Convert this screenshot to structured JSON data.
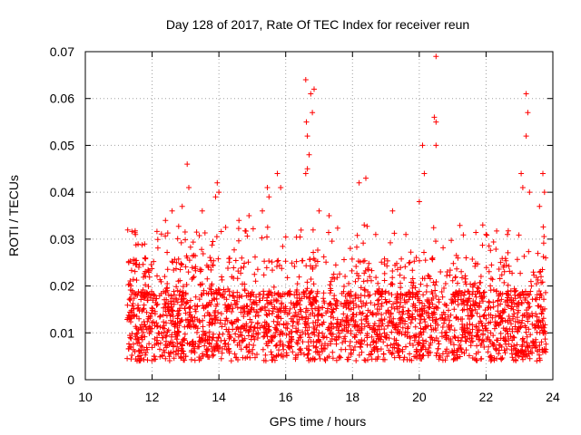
{
  "chart_data": {
    "type": "scatter",
    "title": "Day 128 of 2017, Rate Of TEC Index for receiver reun",
    "xlabel": "GPS time / hours",
    "ylabel": "ROTI / TECUs",
    "xlim": [
      10,
      24
    ],
    "ylim": [
      0,
      0.07
    ],
    "xticks": [
      10,
      12,
      14,
      16,
      18,
      20,
      22,
      24
    ],
    "xtick_labels": [
      "10",
      "12",
      "14",
      "16",
      "18",
      "20",
      "22",
      "24"
    ],
    "yticks": [
      0,
      0.01,
      0.02,
      0.03,
      0.04,
      0.05,
      0.06,
      0.07
    ],
    "ytick_labels": [
      "0",
      "0.01",
      "0.02",
      "0.03",
      "0.04",
      "0.05",
      "0.06",
      "0.07"
    ],
    "grid": true,
    "marker": "+",
    "color": "#ff0000",
    "series": [
      {
        "name": "ROTI",
        "note": "Dense band of points from ~11.2 to ~23.8 h, mostly 0.005-0.02; representative peaks listed",
        "points": [
          [
            11.3,
            0.025
          ],
          [
            11.5,
            0.031
          ],
          [
            11.6,
            0.024
          ],
          [
            12.4,
            0.034
          ],
          [
            12.6,
            0.036
          ],
          [
            12.9,
            0.037
          ],
          [
            13.05,
            0.046
          ],
          [
            13.1,
            0.041
          ],
          [
            13.5,
            0.036
          ],
          [
            13.9,
            0.039
          ],
          [
            13.95,
            0.042
          ],
          [
            14.0,
            0.04
          ],
          [
            14.6,
            0.034
          ],
          [
            14.9,
            0.035
          ],
          [
            15.3,
            0.036
          ],
          [
            15.45,
            0.041
          ],
          [
            15.5,
            0.039
          ],
          [
            15.75,
            0.044
          ],
          [
            15.85,
            0.041
          ],
          [
            16.6,
            0.064
          ],
          [
            16.62,
            0.055
          ],
          [
            16.65,
            0.052
          ],
          [
            16.7,
            0.048
          ],
          [
            16.75,
            0.061
          ],
          [
            16.8,
            0.057
          ],
          [
            16.85,
            0.062
          ],
          [
            16.6,
            0.044
          ],
          [
            16.65,
            0.045
          ],
          [
            17.0,
            0.036
          ],
          [
            17.3,
            0.035
          ],
          [
            18.2,
            0.042
          ],
          [
            18.4,
            0.043
          ],
          [
            18.35,
            0.033
          ],
          [
            19.2,
            0.036
          ],
          [
            19.6,
            0.031
          ],
          [
            20.1,
            0.05
          ],
          [
            20.15,
            0.044
          ],
          [
            20.0,
            0.038
          ],
          [
            20.5,
            0.069
          ],
          [
            20.45,
            0.056
          ],
          [
            20.5,
            0.055
          ],
          [
            20.5,
            0.05
          ],
          [
            21.4,
            0.026
          ],
          [
            21.9,
            0.033
          ],
          [
            22.0,
            0.031
          ],
          [
            23.05,
            0.044
          ],
          [
            23.1,
            0.041
          ],
          [
            23.2,
            0.061
          ],
          [
            23.25,
            0.057
          ],
          [
            23.2,
            0.052
          ],
          [
            23.3,
            0.04
          ],
          [
            23.7,
            0.044
          ],
          [
            23.75,
            0.04
          ],
          [
            23.6,
            0.037
          ]
        ]
      }
    ]
  }
}
